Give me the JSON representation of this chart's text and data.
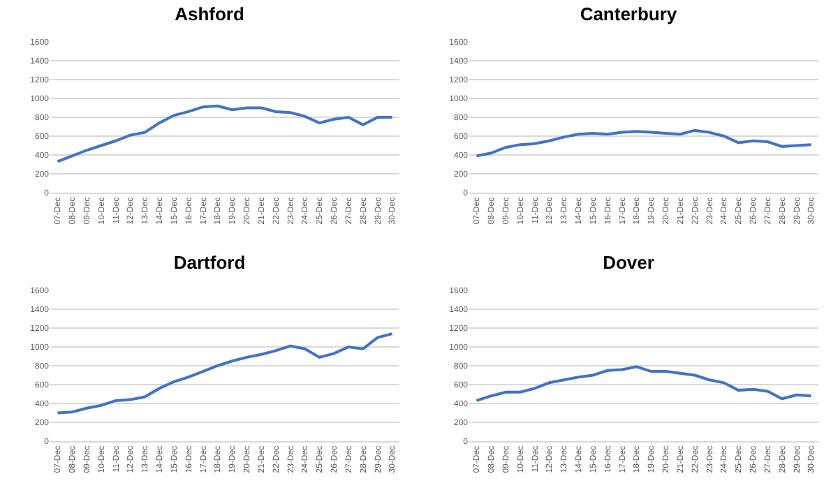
{
  "chart_data": [
    {
      "type": "line",
      "title": "Ashford",
      "categories": [
        "07-Dec",
        "08-Dec",
        "09-Dec",
        "10-Dec",
        "11-Dec",
        "12-Dec",
        "13-Dec",
        "14-Dec",
        "15-Dec",
        "16-Dec",
        "17-Dec",
        "18-Dec",
        "19-Dec",
        "20-Dec",
        "21-Dec",
        "22-Dec",
        "23-Dec",
        "24-Dec",
        "25-Dec",
        "26-Dec",
        "27-Dec",
        "28-Dec",
        "29-Dec",
        "30-Dec"
      ],
      "color": "#4472c4",
      "ylim": [
        0,
        1600
      ],
      "yticks": [
        0,
        200,
        400,
        600,
        800,
        1000,
        1200,
        1400,
        1600
      ],
      "grid": "y",
      "values": [
        330,
        390,
        450,
        500,
        550,
        610,
        640,
        740,
        820,
        860,
        910,
        920,
        880,
        900,
        900,
        860,
        850,
        810,
        740,
        780,
        800,
        720,
        800,
        800
      ]
    },
    {
      "type": "line",
      "title": "Canterbury",
      "categories": [
        "07-Dec",
        "08-Dec",
        "09-Dec",
        "10-Dec",
        "11-Dec",
        "12-Dec",
        "13-Dec",
        "14-Dec",
        "15-Dec",
        "16-Dec",
        "17-Dec",
        "18-Dec",
        "19-Dec",
        "20-Dec",
        "21-Dec",
        "22-Dec",
        "23-Dec",
        "24-Dec",
        "25-Dec",
        "26-Dec",
        "27-Dec",
        "28-Dec",
        "29-Dec",
        "30-Dec"
      ],
      "color": "#4472c4",
      "ylim": [
        0,
        1600
      ],
      "yticks": [
        0,
        200,
        400,
        600,
        800,
        1000,
        1200,
        1400,
        1600
      ],
      "grid": "y",
      "values": [
        390,
        420,
        480,
        510,
        520,
        550,
        590,
        620,
        630,
        620,
        640,
        650,
        640,
        630,
        620,
        660,
        640,
        600,
        530,
        550,
        540,
        490,
        500,
        510
      ]
    },
    {
      "type": "line",
      "title": "Dartford",
      "categories": [
        "07-Dec",
        "08-Dec",
        "09-Dec",
        "10-Dec",
        "11-Dec",
        "12-Dec",
        "13-Dec",
        "14-Dec",
        "15-Dec",
        "16-Dec",
        "17-Dec",
        "18-Dec",
        "19-Dec",
        "20-Dec",
        "21-Dec",
        "22-Dec",
        "23-Dec",
        "24-Dec",
        "25-Dec",
        "26-Dec",
        "27-Dec",
        "28-Dec",
        "29-Dec",
        "30-Dec"
      ],
      "color": "#4472c4",
      "ylim": [
        0,
        1600
      ],
      "yticks": [
        0,
        200,
        400,
        600,
        800,
        1000,
        1200,
        1400,
        1600
      ],
      "grid": "y",
      "values": [
        300,
        310,
        350,
        380,
        430,
        440,
        470,
        560,
        630,
        680,
        740,
        800,
        850,
        890,
        920,
        960,
        1010,
        980,
        890,
        930,
        1000,
        980,
        1100,
        1140
      ]
    },
    {
      "type": "line",
      "title": "Dover",
      "categories": [
        "07-Dec",
        "08-Dec",
        "09-Dec",
        "10-Dec",
        "11-Dec",
        "12-Dec",
        "13-Dec",
        "14-Dec",
        "15-Dec",
        "16-Dec",
        "17-Dec",
        "18-Dec",
        "19-Dec",
        "20-Dec",
        "21-Dec",
        "22-Dec",
        "23-Dec",
        "24-Dec",
        "25-Dec",
        "26-Dec",
        "27-Dec",
        "28-Dec",
        "29-Dec",
        "30-Dec"
      ],
      "color": "#4472c4",
      "ylim": [
        0,
        1600
      ],
      "yticks": [
        0,
        200,
        400,
        600,
        800,
        1000,
        1200,
        1400,
        1600
      ],
      "grid": "y",
      "values": [
        430,
        480,
        520,
        520,
        560,
        620,
        650,
        680,
        700,
        750,
        760,
        790,
        740,
        740,
        720,
        700,
        650,
        620,
        540,
        550,
        530,
        450,
        490,
        480
      ]
    }
  ]
}
